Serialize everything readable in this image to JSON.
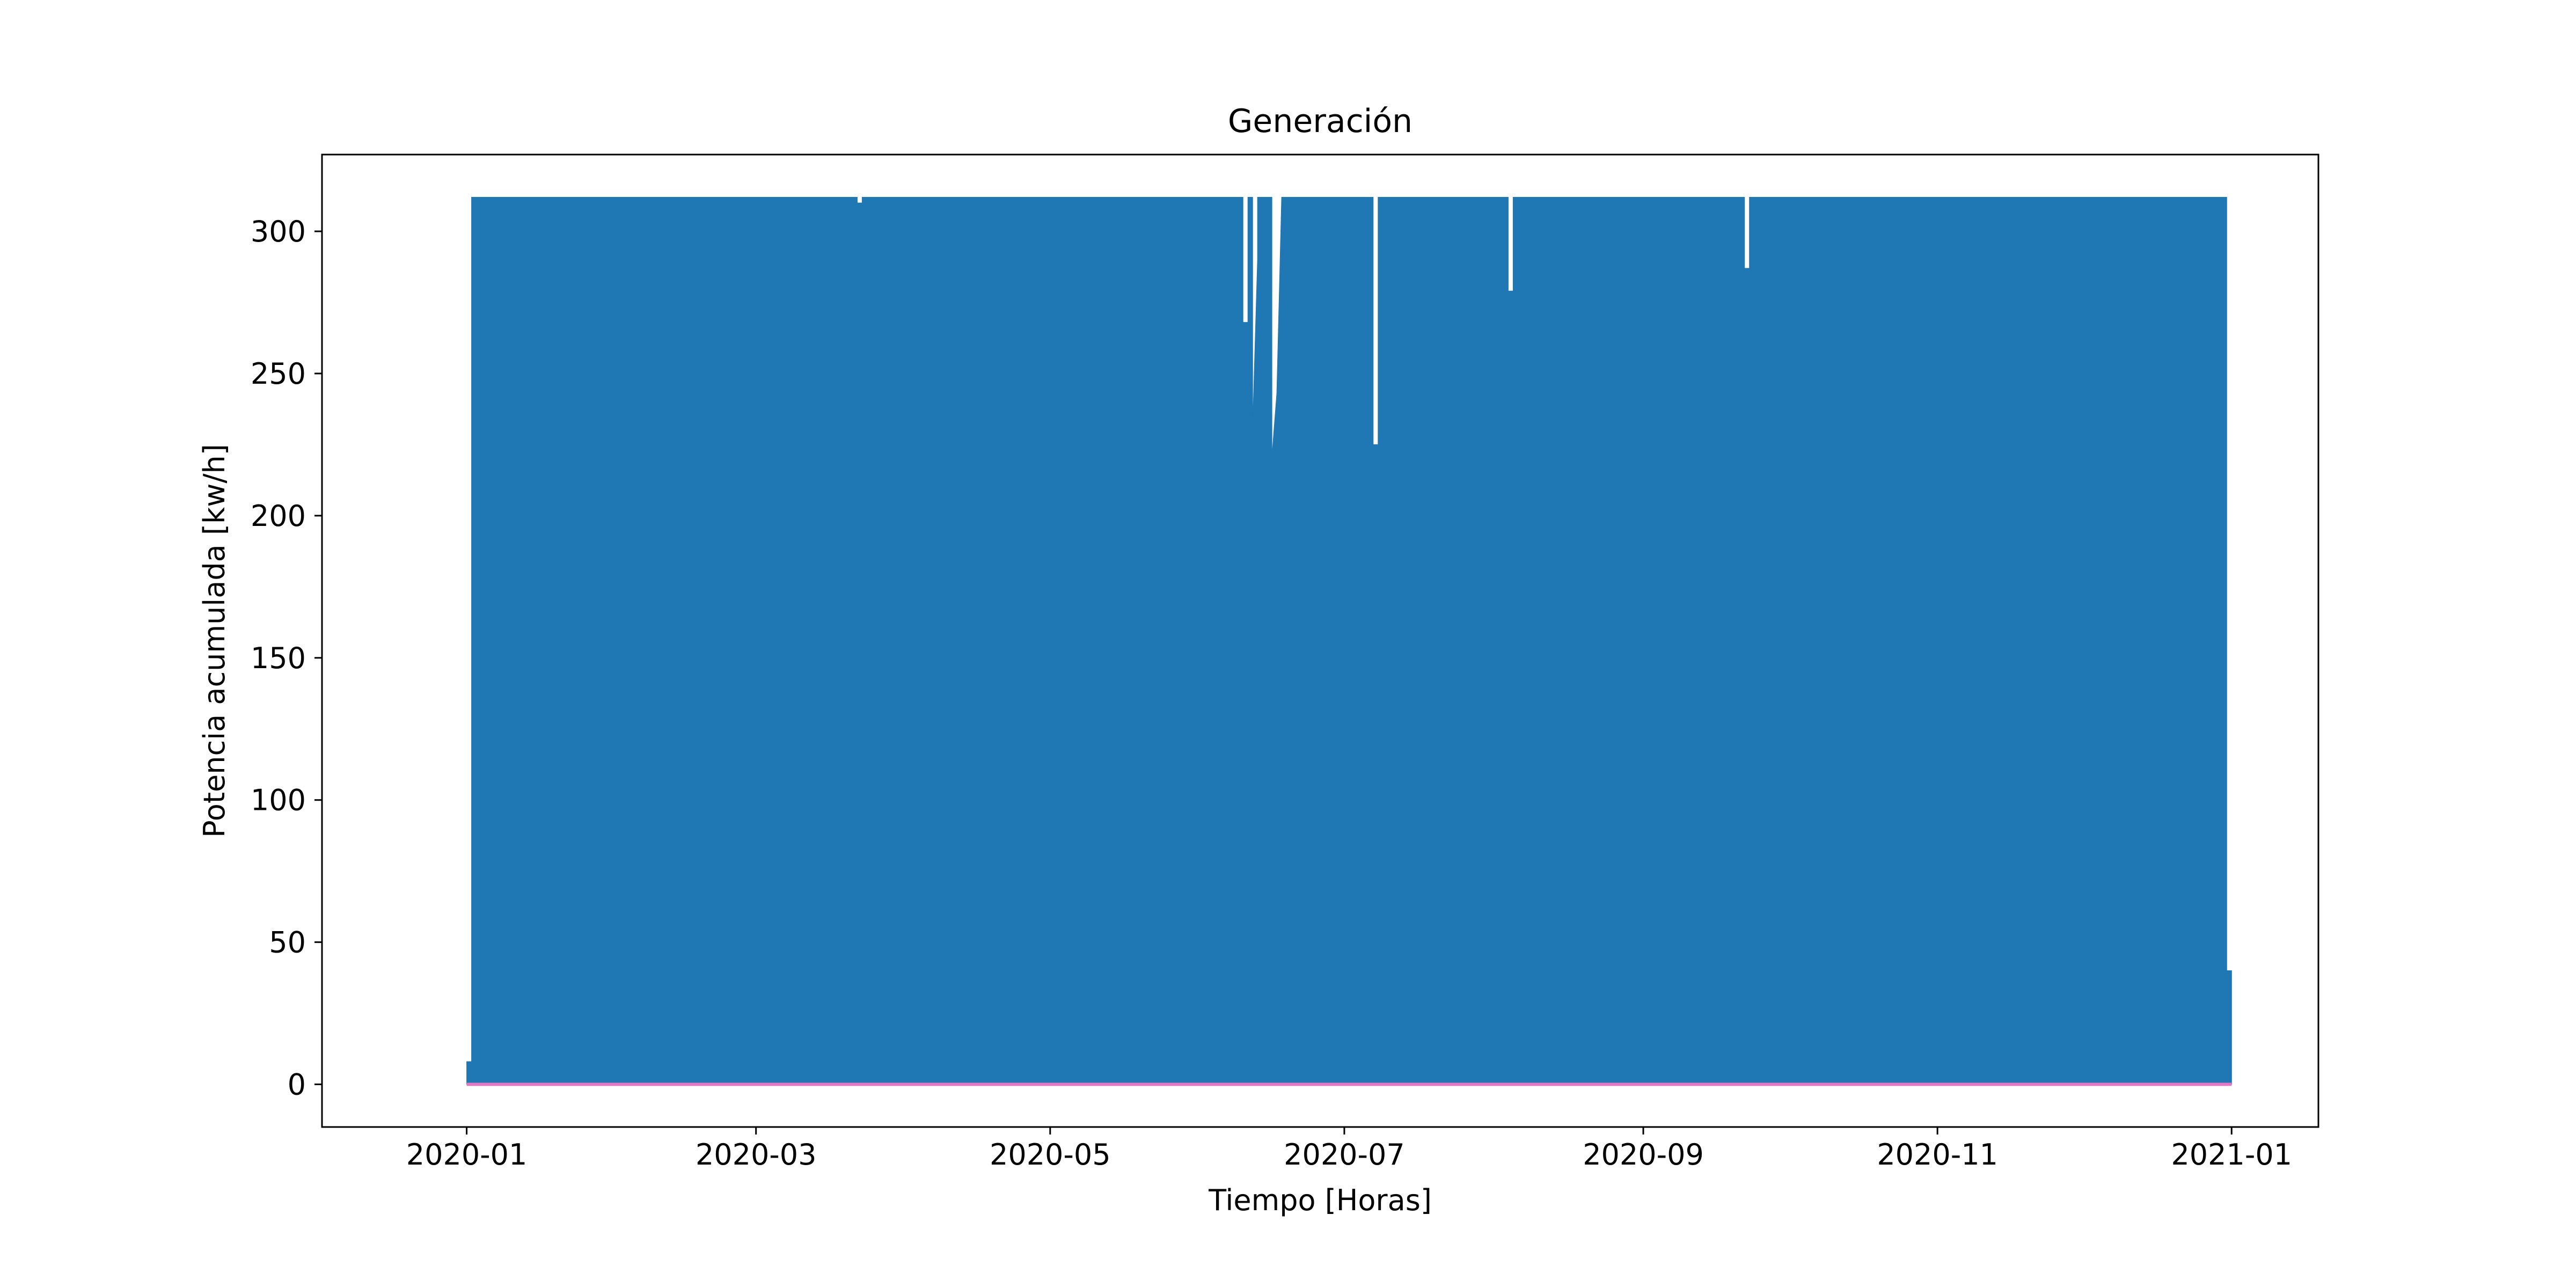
{
  "chart_data": {
    "type": "area",
    "title": "Generación",
    "xlabel": "Tiempo [Horas]",
    "ylabel": "Potencia acumulada [kw/h]",
    "xlim": [
      "2019-12-02",
      "2021-01-19"
    ],
    "ylim": [
      -15,
      327
    ],
    "x_ticks": [
      {
        "date": "2020-01-01",
        "label": "2020-01"
      },
      {
        "date": "2020-03-01",
        "label": "2020-03"
      },
      {
        "date": "2020-05-01",
        "label": "2020-05"
      },
      {
        "date": "2020-07-01",
        "label": "2020-07"
      },
      {
        "date": "2020-09-01",
        "label": "2020-09"
      },
      {
        "date": "2020-11-01",
        "label": "2020-11"
      },
      {
        "date": "2021-01-01",
        "label": "2021-01"
      }
    ],
    "y_ticks": [
      0,
      50,
      100,
      150,
      200,
      250,
      300
    ],
    "grid": false,
    "legend": "none",
    "series": [
      {
        "color": "#1f77b4",
        "baseline": 0,
        "max_value": 312,
        "start": "2020-01-01",
        "end": "2020-12-31",
        "points": [
          {
            "x": "2020-01-01",
            "y": 0
          },
          {
            "x": "2020-01-01",
            "y": 8
          },
          {
            "x": "2020-01-02",
            "y": 8
          },
          {
            "x": "2020-01-02",
            "y": 312
          },
          {
            "x": "2020-03-22",
            "y": 312
          },
          {
            "x": "2020-03-22",
            "y": 310
          },
          {
            "x": "2020-03-23",
            "y": 310
          },
          {
            "x": "2020-03-23",
            "y": 312
          },
          {
            "x": "2020-06-10",
            "y": 312
          },
          {
            "x": "2020-06-10",
            "y": 268
          },
          {
            "x": "2020-06-11",
            "y": 268
          },
          {
            "x": "2020-06-11",
            "y": 312
          },
          {
            "x": "2020-06-12",
            "y": 312
          },
          {
            "x": "2020-06-12",
            "y": 232
          },
          {
            "x": "2020-06-13",
            "y": 290
          },
          {
            "x": "2020-06-13",
            "y": 312
          },
          {
            "x": "2020-06-16",
            "y": 312
          },
          {
            "x": "2020-06-16",
            "y": 221
          },
          {
            "x": "2020-06-17",
            "y": 243
          },
          {
            "x": "2020-06-18",
            "y": 312
          },
          {
            "x": "2020-07-07",
            "y": 312
          },
          {
            "x": "2020-07-07",
            "y": 225
          },
          {
            "x": "2020-07-08",
            "y": 225
          },
          {
            "x": "2020-07-08",
            "y": 312
          },
          {
            "x": "2020-08-04",
            "y": 312
          },
          {
            "x": "2020-08-04",
            "y": 279
          },
          {
            "x": "2020-08-05",
            "y": 279
          },
          {
            "x": "2020-08-05",
            "y": 312
          },
          {
            "x": "2020-09-22",
            "y": 312
          },
          {
            "x": "2020-09-22",
            "y": 287
          },
          {
            "x": "2020-09-23",
            "y": 287
          },
          {
            "x": "2020-09-23",
            "y": 312
          },
          {
            "x": "2020-12-31",
            "y": 312
          },
          {
            "x": "2020-12-31",
            "y": 40
          },
          {
            "x": "2021-01-01",
            "y": 40
          },
          {
            "x": "2021-01-01",
            "y": 0
          }
        ]
      },
      {
        "color": "#e377c2",
        "start": "2020-01-01",
        "end": "2021-01-01",
        "value": 0
      }
    ]
  }
}
